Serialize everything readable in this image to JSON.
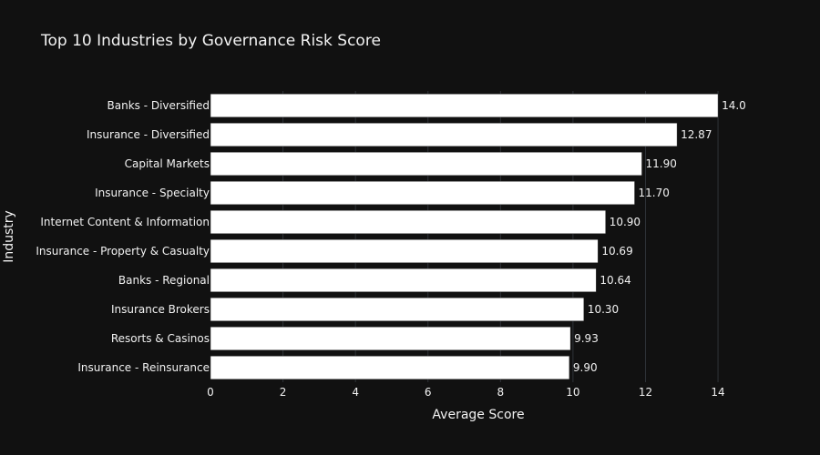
{
  "chart_data": {
    "type": "bar",
    "orientation": "horizontal",
    "title": "Top 10 Industries by Governance Risk Score",
    "xlabel": "Average Score",
    "ylabel": "Industry",
    "xlim": [
      0,
      14.3
    ],
    "xticks": [
      0,
      2,
      4,
      6,
      8,
      10,
      12,
      14
    ],
    "grid": true,
    "categories": [
      "Banks - Diversified",
      "Insurance - Diversified",
      "Capital Markets",
      "Insurance - Specialty",
      "Internet Content & Information",
      "Insurance - Property & Casualty",
      "Banks - Regional",
      "Insurance Brokers",
      "Resorts & Casinos",
      "Insurance - Reinsurance"
    ],
    "values": [
      14.0,
      12.87,
      11.9,
      11.7,
      10.9,
      10.69,
      10.64,
      10.3,
      9.93,
      9.9
    ],
    "value_labels": [
      "14.0",
      "12.87",
      "11.90",
      "11.70",
      "10.90",
      "10.69",
      "10.64",
      "10.30",
      "9.93",
      "9.90"
    ],
    "colors": {
      "background": "#111111",
      "bar": "#ffffff",
      "grid": "#2f3338",
      "text": "#f2f2f2"
    }
  }
}
